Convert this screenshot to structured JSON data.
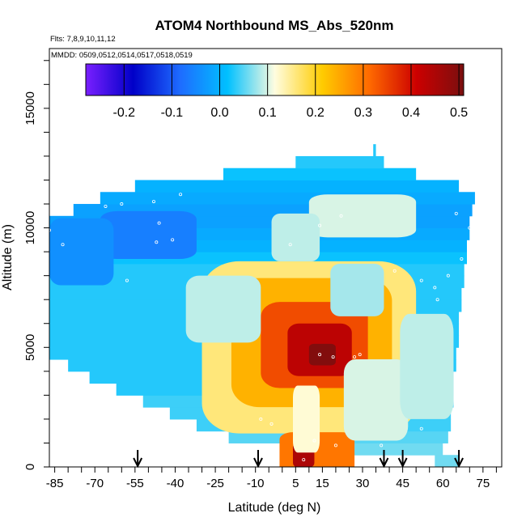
{
  "chart_data": {
    "type": "heatmap",
    "title": "ATOM4 Northbound MS_Abs_520nm",
    "annotations": [
      "Flts: 7,8,9,10,11,12",
      "MMDD: 0509,0512,0514,0517,0518,0519"
    ],
    "xlabel": "Latitude (deg N)",
    "ylabel": "Altitude (m)",
    "xlim": [
      -87,
      82
    ],
    "ylim": [
      0,
      17500
    ],
    "x_ticks": [
      -85,
      -70,
      -55,
      -40,
      -25,
      -10,
      5,
      15,
      30,
      45,
      60,
      75
    ],
    "y_ticks": [
      0,
      5000,
      10000,
      15000
    ],
    "colorbar": {
      "range": [
        -0.28,
        0.51
      ],
      "ticks": [
        -0.2,
        -0.1,
        0.0,
        0.1,
        0.2,
        0.3,
        0.4,
        0.5
      ],
      "tick_labels": [
        "-0.2",
        "-0.1",
        "0.0",
        "0.1",
        "0.2",
        "0.3",
        "0.4",
        "0.5"
      ],
      "colors": [
        "#7a1fff",
        "#0000c8",
        "#1e6cff",
        "#00c0ff",
        "#fffde0",
        "#ffcc00",
        "#ff6a00",
        "#cc0000",
        "#7a0f0f"
      ]
    },
    "grid": false,
    "legend": "colorbar top",
    "rows": [
      {
        "z": 0,
        "x0": 57,
        "x1": 66,
        "v": 0.06
      },
      {
        "z": 500,
        "x0": 10,
        "x1": 60,
        "v": 0.06
      },
      {
        "z": 1000,
        "x0": -20,
        "x1": 62,
        "v": 0.05
      },
      {
        "z": 1500,
        "x0": -32,
        "x1": 63,
        "v": 0.04
      },
      {
        "z": 2000,
        "x0": -42,
        "x1": 63,
        "v": 0.04
      },
      {
        "z": 2500,
        "x0": -52,
        "x1": 64,
        "v": 0.04
      },
      {
        "z": 3000,
        "x0": -62,
        "x1": 64,
        "v": 0.03
      },
      {
        "z": 3500,
        "x0": -72,
        "x1": 64,
        "v": 0.03
      },
      {
        "z": 4000,
        "x0": -80,
        "x1": 65,
        "v": 0.03
      },
      {
        "z": 4500,
        "x0": -87,
        "x1": 65,
        "v": 0.03
      },
      {
        "z": 5000,
        "x0": -87,
        "x1": 66,
        "v": 0.03
      },
      {
        "z": 5500,
        "x0": -87,
        "x1": 66,
        "v": 0.03
      },
      {
        "z": 6000,
        "x0": -87,
        "x1": 66,
        "v": 0.03
      },
      {
        "z": 6500,
        "x0": -87,
        "x1": 67,
        "v": 0.03
      },
      {
        "z": 7000,
        "x0": -87,
        "x1": 67,
        "v": 0.03
      },
      {
        "z": 7500,
        "x0": -87,
        "x1": 68,
        "v": 0.03
      },
      {
        "z": 8000,
        "x0": -87,
        "x1": 68,
        "v": 0.03
      },
      {
        "z": 8500,
        "x0": -87,
        "x1": 69,
        "v": 0.02
      },
      {
        "z": 9000,
        "x0": -87,
        "x1": 69,
        "v": 0.0
      },
      {
        "z": 9500,
        "x0": -87,
        "x1": 70,
        "v": -0.01
      },
      {
        "z": 10000,
        "x0": -87,
        "x1": 70,
        "v": -0.02
      },
      {
        "z": 10500,
        "x0": -78,
        "x1": 71,
        "v": -0.02
      },
      {
        "z": 11000,
        "x0": -68,
        "x1": 72,
        "v": -0.01
      },
      {
        "z": 11500,
        "x0": -55,
        "x1": 66,
        "v": 0.0
      },
      {
        "z": 12000,
        "x0": -22,
        "x1": 50,
        "v": 0.02
      },
      {
        "z": 12500,
        "x0": 5,
        "x1": 38,
        "v": 0.03
      },
      {
        "z": 13000,
        "x0": 34,
        "x1": 35,
        "v": 0.03
      }
    ],
    "blobs": [
      {
        "x": 10,
        "z": 5000,
        "rx": 40,
        "rz": 3600,
        "v": 0.16
      },
      {
        "x": 11,
        "z": 5200,
        "rx": 30,
        "rz": 2700,
        "v": 0.24
      },
      {
        "x": 12,
        "z": 5100,
        "rx": 20,
        "rz": 1800,
        "v": 0.34
      },
      {
        "x": 14,
        "z": 4900,
        "rx": 12,
        "rz": 1100,
        "v": 0.43
      },
      {
        "x": 15,
        "z": 4700,
        "rx": 5,
        "rz": 450,
        "v": 0.5
      },
      {
        "x": 13,
        "z": 600,
        "rx": 14,
        "rz": 850,
        "v": 0.3
      },
      {
        "x": 8,
        "z": 500,
        "rx": 4,
        "rz": 500,
        "v": 0.45
      },
      {
        "x": 9,
        "z": 2000,
        "rx": 5,
        "rz": 1400,
        "v": 0.12
      },
      {
        "x": -22,
        "z": 6600,
        "rx": 14,
        "rz": 1400,
        "v": 0.09
      },
      {
        "x": 28,
        "z": 7400,
        "rx": 10,
        "rz": 1100,
        "v": 0.08
      },
      {
        "x": 35,
        "z": 2800,
        "rx": 12,
        "rz": 1700,
        "v": 0.1
      },
      {
        "x": 54,
        "z": 4200,
        "rx": 10,
        "rz": 2200,
        "v": 0.09
      },
      {
        "x": 30,
        "z": 10500,
        "rx": 20,
        "rz": 900,
        "v": 0.1
      },
      {
        "x": 5,
        "z": 9600,
        "rx": 9,
        "rz": 1000,
        "v": 0.09
      },
      {
        "x": -50,
        "z": 9700,
        "rx": 18,
        "rz": 1000,
        "v": -0.06
      },
      {
        "x": -75,
        "z": 9000,
        "rx": 12,
        "rz": 1400,
        "v": -0.04
      }
    ],
    "flight_points": [
      [
        -78,
        11300
      ],
      [
        -74,
        11200
      ],
      [
        -66,
        10900
      ],
      [
        -60,
        11000
      ],
      [
        -48,
        11100
      ],
      [
        -38,
        11400
      ],
      [
        -87,
        9900
      ],
      [
        -82,
        9300
      ],
      [
        -46,
        10200
      ],
      [
        -47,
        9400
      ],
      [
        -41,
        9500
      ],
      [
        -58,
        7800
      ],
      [
        -86,
        4400
      ],
      [
        -39,
        1100
      ],
      [
        -8,
        2000
      ],
      [
        -4,
        1800
      ],
      [
        14,
        4700
      ],
      [
        19,
        4600
      ],
      [
        27,
        4600
      ],
      [
        29,
        4700
      ],
      [
        12,
        1100
      ],
      [
        20,
        900
      ],
      [
        37,
        900
      ],
      [
        8,
        300
      ],
      [
        42,
        8200
      ],
      [
        52,
        7800
      ],
      [
        57,
        7500
      ],
      [
        58,
        7000
      ],
      [
        62,
        8000
      ],
      [
        67,
        8700
      ],
      [
        70,
        10000
      ],
      [
        65,
        10600
      ],
      [
        22,
        10500
      ],
      [
        14,
        10100
      ],
      [
        3,
        9300
      ],
      [
        52,
        1600
      ]
    ],
    "arrow_latitudes": [
      -54,
      -9,
      38,
      45,
      66
    ]
  }
}
